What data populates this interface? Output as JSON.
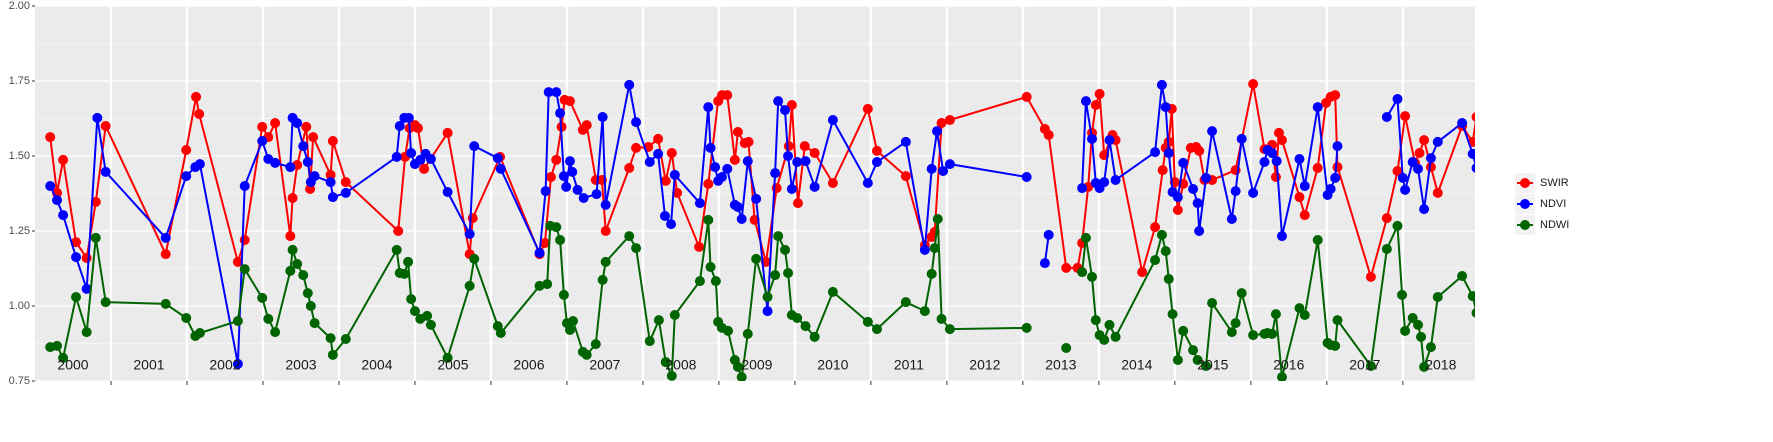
{
  "chart_data": {
    "type": "line",
    "xlim": [
      2000,
      2018.95
    ],
    "ylim": [
      0.75,
      2.0
    ],
    "yticks": [
      {
        "value": 0.75,
        "label": "0.75"
      },
      {
        "value": 1.0,
        "label": "1.00"
      },
      {
        "value": 1.25,
        "label": "1.25"
      },
      {
        "value": 1.5,
        "label": "1.50"
      },
      {
        "value": 1.75,
        "label": "1.75"
      },
      {
        "value": 2.0,
        "label": "2.00"
      }
    ],
    "xticks": [
      2001,
      2002,
      2003,
      2004,
      2005,
      2006,
      2007,
      2008,
      2009,
      2010,
      2011,
      2012,
      2013,
      2014,
      2015,
      2016,
      2017,
      2018
    ],
    "year_labels": [
      "2000",
      "2001",
      "2002",
      "2003",
      "2004",
      "2005",
      "2006",
      "2007",
      "2008",
      "2009",
      "2010",
      "2011",
      "2012",
      "2013",
      "2014",
      "2015",
      "2016",
      "2017",
      "2018"
    ],
    "grid": true,
    "legend": "right",
    "series": [
      {
        "name": "SWIR",
        "color": "#ff0000",
        "x": [
          2000.2,
          2000.29,
          2000.37,
          2000.54,
          2000.68,
          2000.8,
          2000.93,
          2001.72,
          2001.99,
          2002.12,
          2002.16,
          2002.67,
          2002.76,
          2002.99,
          2003.07,
          2003.16,
          2003.36,
          2003.39,
          2003.45,
          2003.57,
          2003.62,
          2003.66,
          2003.89,
          2003.92,
          2004.09,
          2004.78,
          2004.87,
          2004.93,
          2005.0,
          2005.04,
          2005.12,
          2005.43,
          2005.72,
          2005.76,
          2006.12,
          2006.64,
          2006.71,
          2006.79,
          2006.86,
          2006.93,
          2006.97,
          2007.04,
          2007.21,
          2007.26,
          2007.38,
          2007.46,
          2007.51,
          2007.82,
          2007.91,
          2008.07,
          2008.2,
          2008.3,
          2008.38,
          2008.45,
          2008.74,
          2008.86,
          2008.99,
          2009.04,
          2009.11,
          2009.21,
          2009.25,
          2009.34,
          2009.39,
          2009.47,
          2009.62,
          2009.76,
          2009.92,
          2009.96,
          2010.04,
          2010.13,
          2010.26,
          2010.5,
          2010.96,
          2011.08,
          2011.46,
          2011.71,
          2011.8,
          2011.84,
          2011.93,
          2012.04,
          2013.05,
          2013.29,
          2013.34,
          2013.57,
          2013.72,
          2013.78,
          2013.86,
          2013.91,
          2013.96,
          2014.01,
          2014.07,
          2014.18,
          2014.22,
          2014.57,
          2014.74,
          2014.84,
          2014.88,
          2014.92,
          2014.96,
          2015.0,
          2015.04,
          2015.11,
          2015.21,
          2015.28,
          2015.32,
          2015.39,
          2015.49,
          2015.8,
          2016.03,
          2016.18,
          2016.28,
          2016.33,
          2016.37,
          2016.41,
          2016.64,
          2016.71,
          2016.88,
          2016.99,
          2017.05,
          2017.11,
          2017.14,
          2017.58,
          2017.79,
          2017.93,
          2018.03,
          2018.16,
          2018.22,
          2018.28,
          2018.37,
          2018.46,
          2018.78,
          2018.92,
          2018.97
        ],
        "values": [
          1.563,
          1.377,
          1.487,
          1.213,
          1.16,
          1.347,
          1.6,
          1.173,
          1.52,
          1.697,
          1.64,
          1.147,
          1.22,
          1.597,
          1.563,
          1.61,
          1.233,
          1.36,
          1.47,
          1.597,
          1.39,
          1.563,
          1.437,
          1.55,
          1.413,
          1.25,
          1.497,
          1.593,
          1.603,
          1.593,
          1.457,
          1.577,
          1.173,
          1.293,
          1.497,
          1.173,
          1.21,
          1.43,
          1.487,
          1.597,
          1.687,
          1.683,
          1.587,
          1.603,
          1.42,
          1.42,
          1.25,
          1.46,
          1.527,
          1.53,
          1.557,
          1.417,
          1.51,
          1.377,
          1.197,
          1.407,
          1.683,
          1.703,
          1.703,
          1.487,
          1.58,
          1.543,
          1.547,
          1.287,
          1.147,
          1.393,
          1.533,
          1.67,
          1.343,
          1.533,
          1.51,
          1.41,
          1.657,
          1.517,
          1.433,
          1.203,
          1.23,
          1.247,
          1.61,
          1.62,
          1.697,
          1.59,
          1.57,
          1.127,
          1.127,
          1.21,
          1.397,
          1.577,
          1.67,
          1.707,
          1.503,
          1.57,
          1.553,
          1.113,
          1.263,
          1.453,
          1.527,
          1.547,
          1.657,
          1.413,
          1.32,
          1.407,
          1.527,
          1.53,
          1.517,
          1.42,
          1.42,
          1.453,
          1.74,
          1.523,
          1.537,
          1.43,
          1.577,
          1.553,
          1.363,
          1.303,
          1.46,
          1.677,
          1.697,
          1.703,
          1.463,
          1.097,
          1.293,
          1.45,
          1.633,
          1.477,
          1.51,
          1.553,
          1.463,
          1.377,
          1.6,
          1.547,
          1.63
        ]
      },
      {
        "name": "NDVI",
        "color": "#0000ff",
        "x": [
          2000.2,
          2000.29,
          2000.37,
          2000.54,
          2000.68,
          2000.82,
          2000.93,
          2001.72,
          2001.99,
          2002.11,
          2002.17,
          2002.67,
          2002.76,
          2002.99,
          2003.07,
          2003.16,
          2003.36,
          2003.39,
          2003.45,
          2003.53,
          2003.59,
          2003.63,
          2003.68,
          2003.89,
          2003.92,
          2004.09,
          2004.76,
          2004.8,
          2004.86,
          2004.92,
          2004.95,
          2005.0,
          2005.07,
          2005.14,
          2005.21,
          2005.43,
          2005.72,
          2005.78,
          2006.09,
          2006.13,
          2006.64,
          2006.72,
          2006.76,
          2006.86,
          2006.91,
          2006.96,
          2006.99,
          2007.04,
          2007.07,
          2007.14,
          2007.22,
          2007.39,
          2007.47,
          2007.51,
          2007.82,
          2007.91,
          2008.09,
          2008.2,
          2008.29,
          2008.37,
          2008.42,
          2008.75,
          2008.86,
          2008.89,
          2008.95,
          2008.99,
          2009.04,
          2009.11,
          2009.21,
          2009.25,
          2009.3,
          2009.38,
          2009.49,
          2009.64,
          2009.74,
          2009.78,
          2009.87,
          2009.91,
          2009.96,
          2010.03,
          2010.14,
          2010.26,
          2010.5,
          2010.96,
          2011.08,
          2011.46,
          2011.71,
          2011.8,
          2011.87,
          2011.95,
          2012.04,
          2013.05,
          null,
          2013.29,
          2013.34,
          null,
          2013.78,
          2013.83,
          2013.91,
          2013.96,
          2014.01,
          2014.07,
          2014.14,
          2014.22,
          2014.74,
          2014.83,
          2014.88,
          2014.92,
          2014.97,
          2015.04,
          2015.11,
          2015.24,
          2015.3,
          2015.32,
          2015.41,
          2015.49,
          2015.75,
          2015.8,
          2015.88,
          2016.03,
          2016.18,
          2016.22,
          2016.28,
          2016.34,
          2016.41,
          2016.64,
          2016.71,
          2016.88,
          2017.01,
          2017.05,
          2017.11,
          2017.14,
          null,
          2017.79,
          2017.93,
          2018.0,
          2018.03,
          2018.13,
          2018.2,
          2018.28,
          2018.37,
          2018.46,
          2018.78,
          2018.92,
          2018.97
        ],
        "values": [
          1.4,
          1.353,
          1.303,
          1.163,
          1.057,
          1.627,
          1.447,
          1.227,
          1.433,
          1.463,
          1.473,
          0.807,
          1.4,
          1.55,
          1.49,
          1.477,
          1.463,
          1.627,
          1.61,
          1.533,
          1.48,
          1.413,
          1.433,
          1.413,
          1.363,
          1.377,
          1.497,
          1.6,
          1.627,
          1.627,
          1.51,
          1.473,
          1.487,
          1.507,
          1.49,
          1.38,
          1.24,
          1.533,
          1.493,
          1.457,
          1.177,
          1.383,
          1.713,
          1.713,
          1.643,
          1.433,
          1.397,
          1.483,
          1.447,
          1.387,
          1.36,
          1.373,
          1.63,
          1.337,
          1.737,
          1.613,
          1.48,
          1.507,
          1.3,
          1.273,
          1.437,
          1.343,
          1.663,
          1.527,
          1.463,
          1.417,
          1.43,
          1.457,
          1.337,
          1.33,
          1.29,
          1.483,
          1.357,
          0.983,
          1.443,
          1.683,
          1.653,
          1.5,
          1.39,
          1.48,
          1.483,
          1.397,
          1.62,
          1.41,
          1.48,
          1.547,
          1.187,
          1.457,
          1.583,
          1.45,
          1.473,
          1.43,
          null,
          1.143,
          1.237,
          null,
          1.393,
          1.683,
          1.557,
          1.41,
          1.393,
          1.413,
          1.553,
          1.42,
          1.513,
          1.737,
          1.663,
          1.51,
          1.38,
          1.363,
          1.477,
          1.39,
          1.343,
          1.25,
          1.427,
          1.583,
          1.29,
          1.383,
          1.557,
          1.377,
          1.48,
          1.52,
          1.51,
          1.483,
          1.233,
          1.49,
          1.4,
          1.663,
          1.37,
          1.39,
          1.427,
          1.533,
          null,
          1.63,
          1.69,
          1.427,
          1.387,
          1.48,
          1.457,
          1.323,
          1.493,
          1.547,
          1.61,
          1.507,
          1.46
        ]
      },
      {
        "name": "NDWI",
        "color": "#006400",
        "x": [
          2000.2,
          2000.29,
          2000.37,
          2000.54,
          2000.68,
          2000.8,
          2000.93,
          2001.72,
          2001.99,
          2002.11,
          2002.17,
          2002.67,
          2002.76,
          2002.99,
          2003.07,
          2003.16,
          2003.36,
          2003.39,
          2003.45,
          2003.53,
          2003.59,
          2003.63,
          2003.68,
          2003.89,
          2003.92,
          2004.09,
          2004.76,
          2004.8,
          2004.86,
          2004.91,
          2004.95,
          2005.0,
          2005.07,
          2005.16,
          2005.21,
          2005.43,
          2005.72,
          2005.78,
          2006.09,
          2006.13,
          2006.64,
          2006.74,
          2006.78,
          2006.86,
          2006.91,
          2006.96,
          2007.0,
          2007.04,
          2007.08,
          2007.21,
          2007.26,
          2007.38,
          2007.47,
          2007.51,
          2007.82,
          2007.91,
          2008.09,
          2008.21,
          2008.3,
          2008.38,
          2008.42,
          2008.75,
          2008.86,
          2008.89,
          2008.96,
          2008.99,
          2009.04,
          2009.12,
          2009.21,
          2009.25,
          2009.3,
          2009.38,
          2009.49,
          2009.64,
          2009.74,
          2009.78,
          2009.87,
          2009.91,
          2009.96,
          2010.03,
          2010.14,
          2010.26,
          2010.5,
          2010.96,
          2011.08,
          2011.46,
          2011.71,
          2011.8,
          2011.84,
          2011.88,
          2011.93,
          2012.04,
          2013.05,
          null,
          2013.57,
          null,
          2013.78,
          2013.83,
          2013.91,
          2013.96,
          2014.01,
          2014.07,
          2014.14,
          2014.22,
          2014.74,
          2014.83,
          2014.88,
          2014.92,
          2014.97,
          2015.04,
          2015.11,
          2015.24,
          2015.3,
          2015.41,
          2015.49,
          2015.75,
          2015.8,
          2015.88,
          2016.03,
          2016.18,
          2016.22,
          2016.28,
          2016.33,
          2016.41,
          2016.64,
          2016.71,
          2016.88,
          2017.01,
          2017.05,
          2017.11,
          2017.14,
          2017.58,
          2017.79,
          2017.93,
          2017.99,
          2018.03,
          2018.13,
          2018.2,
          2018.24,
          2018.28,
          2018.37,
          2018.46,
          2018.78,
          2018.92,
          2018.97
        ],
        "values": [
          0.863,
          0.867,
          0.827,
          1.03,
          0.913,
          1.227,
          1.013,
          1.007,
          0.96,
          0.9,
          0.91,
          0.95,
          1.123,
          1.027,
          0.957,
          0.913,
          1.117,
          1.187,
          1.14,
          1.103,
          1.043,
          1.0,
          0.943,
          0.893,
          0.837,
          0.89,
          1.187,
          1.11,
          1.107,
          1.147,
          1.023,
          0.983,
          0.957,
          0.967,
          0.937,
          0.827,
          1.067,
          1.157,
          0.933,
          0.91,
          1.067,
          1.073,
          1.267,
          1.263,
          1.22,
          1.037,
          0.943,
          0.92,
          0.95,
          0.847,
          0.837,
          0.873,
          1.087,
          1.147,
          1.233,
          1.193,
          0.883,
          0.953,
          0.813,
          0.767,
          0.97,
          1.083,
          1.287,
          1.13,
          1.083,
          0.947,
          0.927,
          0.917,
          0.82,
          0.797,
          0.763,
          0.907,
          1.157,
          1.03,
          1.103,
          1.233,
          1.187,
          1.11,
          0.97,
          0.96,
          0.933,
          0.897,
          1.047,
          0.947,
          0.923,
          1.013,
          0.983,
          1.107,
          1.193,
          1.29,
          0.957,
          0.923,
          0.927,
          null,
          0.86,
          null,
          1.113,
          1.227,
          1.097,
          0.953,
          0.903,
          0.887,
          0.937,
          0.897,
          1.153,
          1.237,
          1.183,
          1.09,
          0.973,
          0.82,
          0.917,
          0.853,
          0.82,
          0.8,
          1.01,
          0.913,
          0.943,
          1.043,
          0.903,
          0.907,
          0.91,
          0.907,
          0.973,
          0.763,
          0.993,
          0.97,
          1.22,
          0.877,
          0.87,
          0.867,
          0.953,
          0.8,
          1.19,
          1.267,
          1.037,
          0.917,
          0.96,
          0.937,
          0.897,
          0.797,
          0.863,
          1.03,
          1.1,
          1.033,
          0.977
        ]
      }
    ]
  }
}
